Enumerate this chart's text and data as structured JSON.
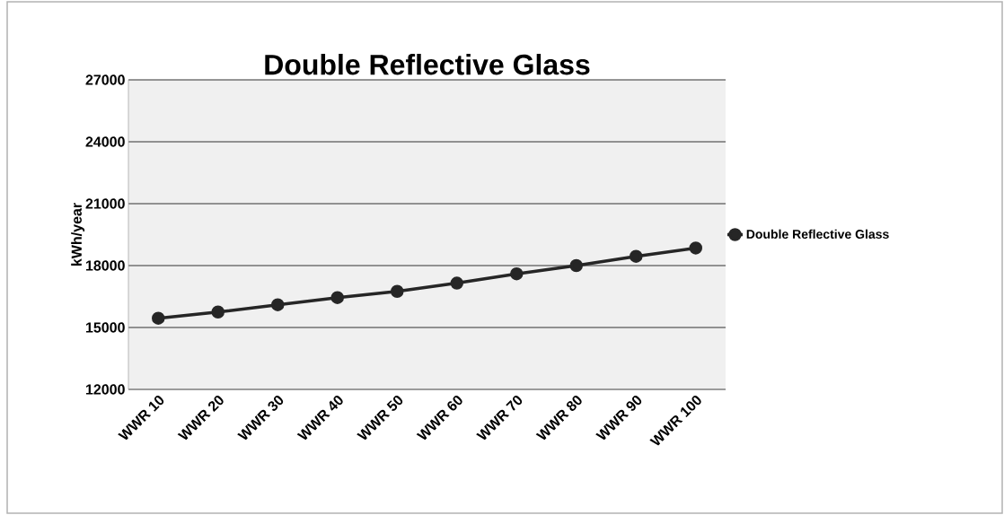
{
  "chart_data": {
    "type": "line",
    "title": "Double Reflective Glass",
    "ylabel": "kWh/year",
    "categories": [
      "WWR 10",
      "WWR 20",
      "WWR 30",
      "WWR 40",
      "WWR 50",
      "WWR 60",
      "WWR 70",
      "WWR 80",
      "WWR 90",
      "WWR 100"
    ],
    "series": [
      {
        "name": "Double Reflective Glass",
        "color": "#262626",
        "values": [
          15450,
          15750,
          16100,
          16450,
          16750,
          17150,
          17600,
          18000,
          18450,
          18850
        ]
      }
    ],
    "ylim": [
      12000,
      27000
    ],
    "yticks": [
      12000,
      15000,
      18000,
      21000,
      24000,
      27000
    ],
    "grid": "y",
    "legend": "right",
    "marker": "circle",
    "line_style": "solid"
  }
}
